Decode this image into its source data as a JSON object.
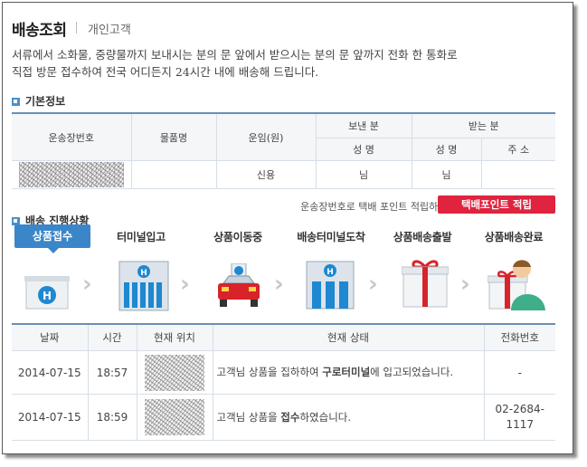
{
  "header": {
    "title": "배송조회",
    "subtitle": "개인고객",
    "description_line1": "서류에서 소화물, 중량물까지 보내시는 분의 문 앞에서 받으시는 분의 문 앞까지 전화 한 통화로",
    "description_line2": "직접 방문 접수하여 전국 어디든지 24시간 내에 배송해 드립니다."
  },
  "basic_info": {
    "section_title": "기본정보",
    "headers": {
      "waybill": "운송장번호",
      "item": "물품명",
      "fare": "운임(원)",
      "sender": "보낸 분",
      "receiver": "받는 분",
      "name": "성 명",
      "name2": "성 명",
      "address": "주 소"
    },
    "row": {
      "item": "",
      "fare": "신용",
      "sender_name": "님",
      "receiver_name": "님",
      "address": ""
    }
  },
  "points": {
    "note": "운송장번호로 택배 포인트 적립하세요.",
    "button_label": "택배포인트 적립"
  },
  "progress": {
    "section_title": "배송 진행상황",
    "steps": [
      "상품접수",
      "터미널입고",
      "상품이동중",
      "배송터미널도착",
      "상품배송출발",
      "상품배송완료"
    ],
    "active_step": 0
  },
  "tracking": {
    "headers": [
      "날짜",
      "시간",
      "현재 위치",
      "현재 상태",
      "전화번호"
    ],
    "rows": [
      {
        "date": "2014-07-15",
        "time": "18:57",
        "status_pre": "고객님 상품을 집하하여 ",
        "status_bold": "구로터미널",
        "status_post": "에 입고되었습니다.",
        "phone": "-"
      },
      {
        "date": "2014-07-15",
        "time": "18:59",
        "status_pre": "고객님 상품을 ",
        "status_bold": "접수",
        "status_post": "하였습니다.",
        "phone": "02-2684-1117"
      }
    ]
  },
  "colors": {
    "accent_blue": "#3a86c8",
    "button_red": "#e0233e",
    "table_border": "#6a8fb5"
  }
}
